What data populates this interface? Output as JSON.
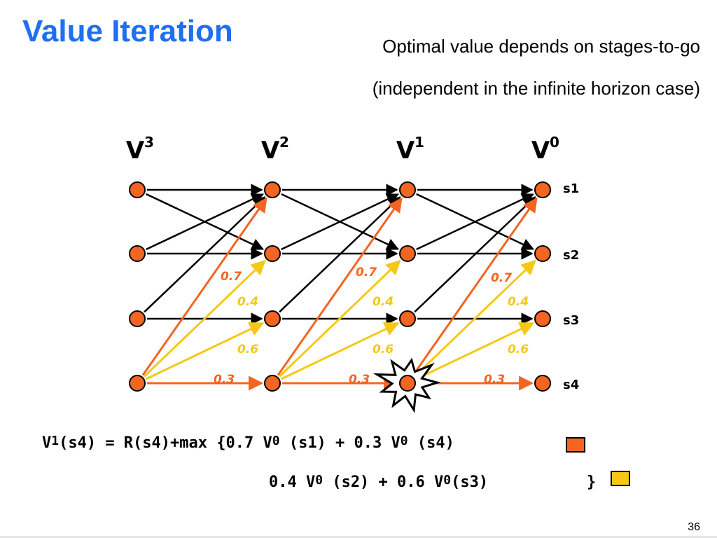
{
  "slide": {
    "title": "Value Iteration",
    "subtitle_line1": "Optimal value depends on stages-to-go",
    "subtitle_line2": "(independent in the infinite horizon case)",
    "page_number": "36"
  },
  "diagram": {
    "columns": [
      {
        "label": "V",
        "sup": "3"
      },
      {
        "label": "V",
        "sup": "2"
      },
      {
        "label": "V",
        "sup": "1"
      },
      {
        "label": "V",
        "sup": "0"
      }
    ],
    "states": [
      "s1",
      "s2",
      "s3",
      "s4"
    ],
    "probabilities": {
      "s1": "0.7",
      "s2": "0.4",
      "s3": "0.6",
      "s4": "0.3"
    },
    "colors": {
      "node_fill": "#f26522",
      "black_arrow": "#000000",
      "orange_arrow": "#f26522",
      "yellow_arrow": "#f5c816",
      "orange_label": "#f26522",
      "yellow_label": "#f5c816",
      "title": "#1f6ff0"
    }
  },
  "equation": {
    "line1_a": "V",
    "line1_sup1": "1",
    "line1_b": "(s4) = R(s4)+max {0.7 V",
    "line1_sup2": "0",
    "line1_c": " (s1) + 0.3 V",
    "line1_sup3": "0",
    "line1_d": " (s4)",
    "line2_a": "0.4 V",
    "line2_sup1": "0",
    "line2_b": " (s2) + 0.6 V",
    "line2_sup2": "0",
    "line2_c": "(s3)",
    "line2_close": "}",
    "legend_orange": "#f26522",
    "legend_yellow": "#f5c816"
  }
}
